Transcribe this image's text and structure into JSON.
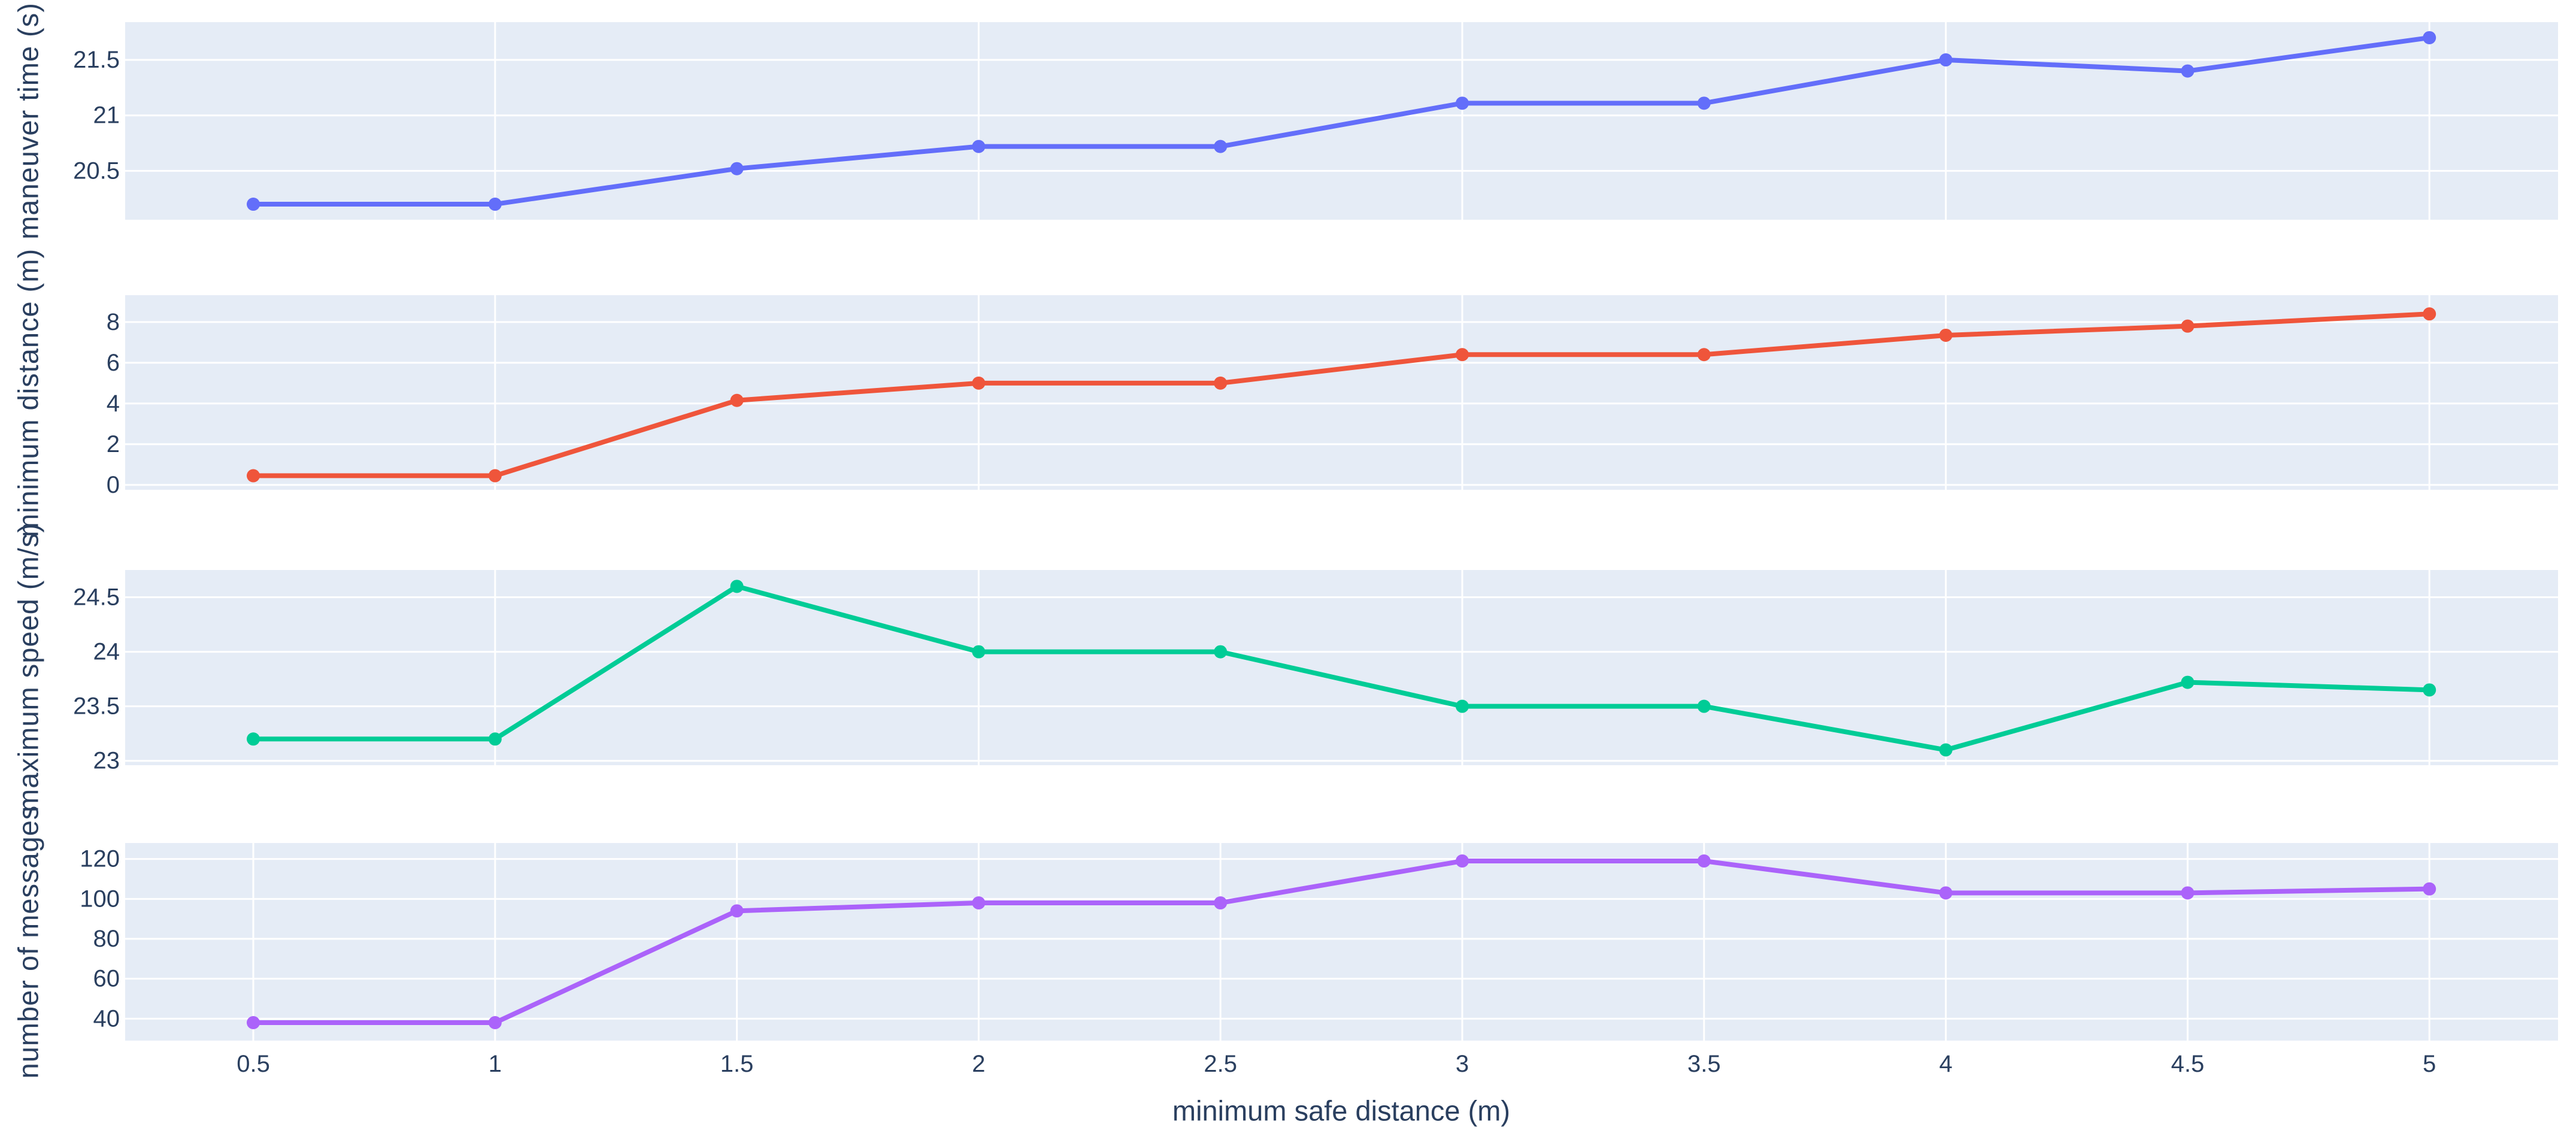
{
  "figure": {
    "x_axis_title": "minimum safe distance (m)",
    "x_tick_labels": [
      "0.5",
      "1",
      "1.5",
      "2",
      "2.5",
      "3",
      "3.5",
      "4",
      "4.5",
      "5"
    ],
    "x_tick_values": [
      0.5,
      1,
      1.5,
      2,
      2.5,
      3,
      3.5,
      4,
      4.5,
      5
    ]
  },
  "colors": {
    "plot_background": "#E5ECF6",
    "gridline": "#FFFFFF",
    "text": "#2a3f5f",
    "series_blue": "#636EFA",
    "series_red": "#EF553B",
    "series_green": "#00CC96",
    "series_purple": "#AB63FA"
  },
  "chart_data": [
    {
      "type": "line",
      "name": "maneuver time",
      "ylabel": "maneuver time (s)",
      "color": "#636EFA",
      "x": [
        0.5,
        1,
        1.5,
        2,
        2.5,
        3,
        3.5,
        4,
        4.5,
        5
      ],
      "y": [
        20.2,
        20.2,
        20.52,
        20.72,
        20.72,
        21.11,
        21.11,
        21.5,
        21.4,
        21.7
      ],
      "y_ticks": [
        20.5,
        21,
        21.5
      ],
      "y_tick_labels": [
        "20.5",
        "21",
        "21.5"
      ],
      "ylim": [
        20.06,
        21.84
      ],
      "x_gridlines": [
        1,
        2,
        3,
        4,
        5
      ],
      "grid": true,
      "legend": "none",
      "markers": true
    },
    {
      "type": "line",
      "name": "minimum distance",
      "ylabel": "minimum distance (m)",
      "color": "#EF553B",
      "x": [
        0.5,
        1,
        1.5,
        2,
        2.5,
        3,
        3.5,
        4,
        4.5,
        5
      ],
      "y": [
        0.45,
        0.45,
        4.15,
        5.0,
        5.0,
        6.4,
        6.4,
        7.35,
        7.8,
        8.4
      ],
      "y_ticks": [
        0,
        2,
        4,
        6,
        8
      ],
      "y_tick_labels": [
        "0",
        "2",
        "4",
        "6",
        "8"
      ],
      "ylim": [
        -0.24,
        9.32
      ],
      "x_gridlines": [
        1,
        2,
        3,
        4,
        5
      ],
      "grid": true,
      "legend": "none",
      "markers": true
    },
    {
      "type": "line",
      "name": "maximum speed",
      "ylabel": "maximum speed (m/s)",
      "color": "#00CC96",
      "x": [
        0.5,
        1,
        1.5,
        2,
        2.5,
        3,
        3.5,
        4,
        4.5,
        5
      ],
      "y": [
        23.2,
        23.2,
        24.6,
        24.0,
        24.0,
        23.5,
        23.5,
        23.1,
        23.72,
        23.65
      ],
      "y_ticks": [
        23,
        23.5,
        24,
        24.5
      ],
      "y_tick_labels": [
        "23",
        "23.5",
        "24",
        "24.5"
      ],
      "ylim": [
        22.96,
        24.75
      ],
      "x_gridlines": [
        1,
        2,
        3,
        4,
        5
      ],
      "grid": true,
      "legend": "none",
      "markers": true
    },
    {
      "type": "line",
      "name": "number of messages",
      "ylabel": "number of messages",
      "color": "#AB63FA",
      "x": [
        0.5,
        1,
        1.5,
        2,
        2.5,
        3,
        3.5,
        4,
        4.5,
        5
      ],
      "y": [
        38,
        38,
        94,
        98,
        98,
        119,
        119,
        103,
        103,
        105
      ],
      "y_ticks": [
        40,
        60,
        80,
        100,
        120
      ],
      "y_tick_labels": [
        "40",
        "60",
        "80",
        "100",
        "120"
      ],
      "ylim": [
        29,
        128
      ],
      "x_gridlines": [
        0.5,
        1,
        1.5,
        2,
        2.5,
        3,
        3.5,
        4,
        4.5,
        5
      ],
      "grid": true,
      "legend": "none",
      "markers": true
    }
  ]
}
